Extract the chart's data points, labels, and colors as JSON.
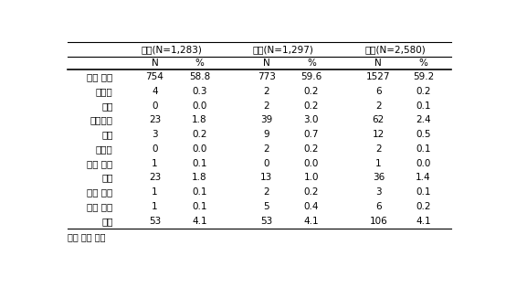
{
  "footnote": "중복 응답 포함",
  "col_groups": [
    {
      "label": "남자(N=1,283)"
    },
    {
      "label": "여자(N=1,297)"
    },
    {
      "label": "합계(N=2,580)"
    }
  ],
  "sub_headers": [
    "N",
    "%",
    "N",
    "%",
    "N",
    "%"
  ],
  "rows": [
    {
      "label": "증상 없음",
      "values": [
        "754",
        "58.8",
        "773",
        "59.6",
        "1527",
        "59.2"
      ]
    },
    {
      "label": "가려움",
      "values": [
        "4",
        "0.3",
        "2",
        "0.2",
        "6",
        "0.2"
      ]
    },
    {
      "label": "오심",
      "values": [
        "0",
        "0.0",
        "2",
        "0.2",
        "2",
        "0.1"
      ]
    },
    {
      "label": "복부불편",
      "values": [
        "23",
        "1.8",
        "39",
        "3.0",
        "62",
        "2.4"
      ]
    },
    {
      "label": "몸살",
      "values": [
        "3",
        "0.2",
        "9",
        "0.7",
        "12",
        "0.5"
      ]
    },
    {
      "label": "근육통",
      "values": [
        "0",
        "0.0",
        "2",
        "0.2",
        "2",
        "0.1"
      ]
    },
    {
      "label": "피부 발진",
      "values": [
        "1",
        "0.1",
        "0",
        "0.0",
        "1",
        "0.0"
      ]
    },
    {
      "label": "황달",
      "values": [
        "23",
        "1.8",
        "13",
        "1.0",
        "36",
        "1.4"
      ]
    },
    {
      "label": "안구 건조",
      "values": [
        "1",
        "0.1",
        "2",
        "0.2",
        "3",
        "0.1"
      ]
    },
    {
      "label": "입술 마름",
      "values": [
        "1",
        "0.1",
        "5",
        "0.4",
        "6",
        "0.2"
      ]
    },
    {
      "label": "기타",
      "values": [
        "53",
        "4.1",
        "53",
        "4.1",
        "106",
        "4.1"
      ]
    }
  ],
  "bg_color": "#ffffff",
  "text_color": "#000000",
  "font_size": 7.5,
  "header_font_size": 7.5
}
